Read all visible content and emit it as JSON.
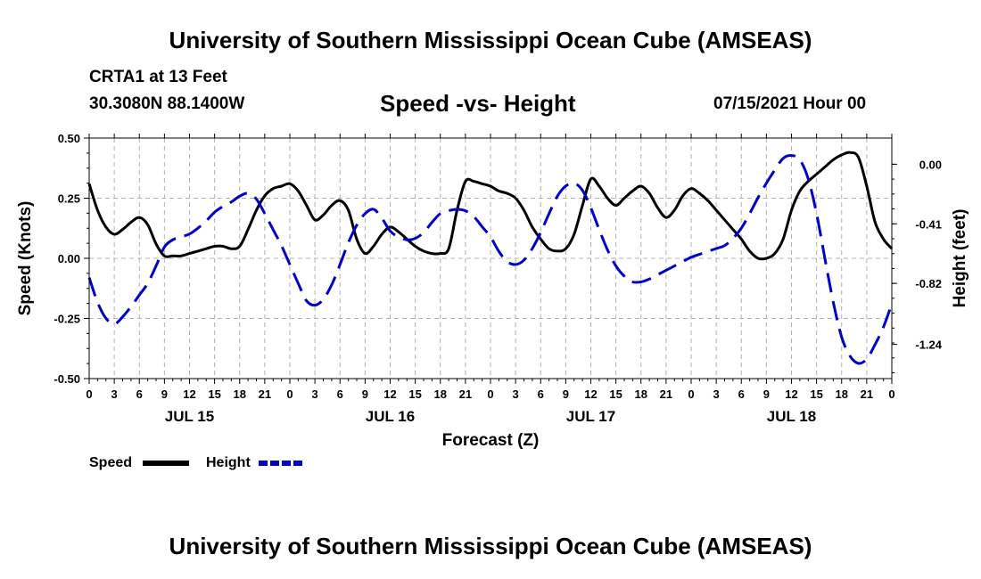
{
  "header": {
    "title": "University of Southern Mississippi Ocean Cube (AMSEAS)",
    "station": "CRTA1 at 13 Feet",
    "coordinates": "30.3080N  88.1400W",
    "chart_title": "Speed -vs- Height",
    "datetime": "07/15/2021 Hour 00"
  },
  "footer": {
    "title": "University of Southern Mississippi Ocean Cube (AMSEAS)"
  },
  "colors": {
    "speed": "#000000",
    "height": "#0000cc",
    "grid": "#b0b0b0"
  },
  "chart_data": {
    "type": "line",
    "title": "Speed -vs- Height",
    "xlabel": "Forecast (Z)",
    "ylabel_left": "Speed (Knots)",
    "ylabel_right": "Height (feet)",
    "xlim": [
      0,
      96
    ],
    "ylim_left": [
      -0.5,
      0.5
    ],
    "ylim_right": [
      -1.475,
      0.18
    ],
    "x_tick_labels": [
      "0",
      "3",
      "6",
      "9",
      "12",
      "15",
      "18",
      "21",
      "0",
      "3",
      "6",
      "9",
      "12",
      "15",
      "18",
      "21",
      "0",
      "3",
      "6",
      "9",
      "12",
      "15",
      "18",
      "21",
      "0",
      "3",
      "6",
      "9",
      "12",
      "15",
      "18",
      "21",
      "0"
    ],
    "day_labels": [
      {
        "label": "JUL 15",
        "x": 12
      },
      {
        "label": "JUL 16",
        "x": 36
      },
      {
        "label": "JUL 17",
        "x": 60
      },
      {
        "label": "JUL 18",
        "x": 84
      }
    ],
    "y_left_ticks": [
      {
        "value": 0.5,
        "label": "0.50"
      },
      {
        "value": 0.25,
        "label": "0.25"
      },
      {
        "value": 0.0,
        "label": "0.00"
      },
      {
        "value": -0.25,
        "label": "-0.25"
      },
      {
        "value": -0.5,
        "label": "-0.50"
      }
    ],
    "y_right_ticks": [
      {
        "value": 0.0,
        "label": "0.00"
      },
      {
        "value": -0.41,
        "label": "-0.41"
      },
      {
        "value": -0.82,
        "label": "-0.82"
      },
      {
        "value": -1.24,
        "label": "-1.24"
      }
    ],
    "legend": [
      {
        "name": "Speed",
        "style": "solid"
      },
      {
        "name": "Height",
        "style": "dashed"
      }
    ],
    "series": [
      {
        "name": "Speed",
        "axis": "left",
        "style": "solid",
        "x": [
          0,
          1,
          2,
          3,
          4,
          5,
          6,
          7,
          8,
          9,
          10,
          11,
          12,
          13,
          14,
          15,
          16,
          17,
          18,
          19,
          20,
          21,
          22,
          23,
          24,
          25,
          26,
          27,
          28,
          29,
          30,
          31,
          32,
          33,
          34,
          35,
          36,
          37,
          38,
          39,
          40,
          41,
          42,
          43,
          44,
          45,
          46,
          47,
          48,
          49,
          50,
          51,
          52,
          53,
          54,
          55,
          56,
          57,
          58,
          59,
          60,
          61,
          62,
          63,
          64,
          65,
          66,
          67,
          68,
          69,
          70,
          71,
          72,
          73,
          74,
          75,
          76,
          77,
          78,
          79,
          80,
          81,
          82,
          83,
          84,
          85,
          86,
          87,
          88,
          89,
          90,
          91,
          92,
          93,
          94,
          95,
          96
        ],
        "values": [
          0.31,
          0.2,
          0.13,
          0.1,
          0.12,
          0.15,
          0.17,
          0.14,
          0.06,
          0.01,
          0.01,
          0.01,
          0.02,
          0.03,
          0.04,
          0.05,
          0.05,
          0.04,
          0.05,
          0.12,
          0.2,
          0.26,
          0.29,
          0.3,
          0.31,
          0.28,
          0.22,
          0.16,
          0.18,
          0.22,
          0.24,
          0.2,
          0.08,
          0.02,
          0.05,
          0.1,
          0.13,
          0.11,
          0.08,
          0.05,
          0.03,
          0.02,
          0.02,
          0.04,
          0.2,
          0.32,
          0.32,
          0.31,
          0.3,
          0.28,
          0.27,
          0.25,
          0.2,
          0.13,
          0.08,
          0.04,
          0.03,
          0.04,
          0.1,
          0.22,
          0.33,
          0.3,
          0.25,
          0.22,
          0.25,
          0.28,
          0.3,
          0.27,
          0.21,
          0.17,
          0.2,
          0.26,
          0.29,
          0.27,
          0.24,
          0.2,
          0.16,
          0.12,
          0.08,
          0.03,
          0.0,
          0.0,
          0.02,
          0.08,
          0.2,
          0.28,
          0.32,
          0.35,
          0.38,
          0.41,
          0.43,
          0.44,
          0.42,
          0.3,
          0.15,
          0.08,
          0.04
        ]
      },
      {
        "name": "Height",
        "axis": "right",
        "style": "dashed",
        "x": [
          0,
          1,
          2,
          3,
          4,
          5,
          6,
          7,
          8,
          9,
          10,
          11,
          12,
          13,
          14,
          15,
          16,
          17,
          18,
          19,
          20,
          21,
          22,
          23,
          24,
          25,
          26,
          27,
          28,
          29,
          30,
          31,
          32,
          33,
          34,
          35,
          36,
          37,
          38,
          39,
          40,
          41,
          42,
          43,
          44,
          45,
          46,
          47,
          48,
          49,
          50,
          51,
          52,
          53,
          54,
          55,
          56,
          57,
          58,
          59,
          60,
          61,
          62,
          63,
          64,
          65,
          66,
          67,
          68,
          69,
          70,
          71,
          72,
          73,
          74,
          75,
          76,
          77,
          78,
          79,
          80,
          81,
          82,
          83,
          84,
          85,
          86,
          87,
          88,
          89,
          90,
          91,
          92,
          93,
          94,
          95,
          96
        ],
        "values": [
          -0.78,
          -0.95,
          -1.06,
          -1.1,
          -1.05,
          -0.98,
          -0.9,
          -0.82,
          -0.7,
          -0.57,
          -0.52,
          -0.5,
          -0.48,
          -0.44,
          -0.39,
          -0.33,
          -0.29,
          -0.26,
          -0.22,
          -0.2,
          -0.24,
          -0.34,
          -0.45,
          -0.56,
          -0.69,
          -0.82,
          -0.94,
          -0.97,
          -0.93,
          -0.83,
          -0.69,
          -0.54,
          -0.42,
          -0.34,
          -0.31,
          -0.37,
          -0.46,
          -0.5,
          -0.52,
          -0.51,
          -0.47,
          -0.4,
          -0.34,
          -0.32,
          -0.31,
          -0.32,
          -0.36,
          -0.43,
          -0.5,
          -0.6,
          -0.67,
          -0.69,
          -0.66,
          -0.58,
          -0.47,
          -0.34,
          -0.22,
          -0.15,
          -0.13,
          -0.18,
          -0.3,
          -0.45,
          -0.59,
          -0.7,
          -0.77,
          -0.81,
          -0.81,
          -0.79,
          -0.76,
          -0.73,
          -0.7,
          -0.67,
          -0.64,
          -0.62,
          -0.6,
          -0.58,
          -0.56,
          -0.51,
          -0.44,
          -0.34,
          -0.23,
          -0.13,
          -0.04,
          0.04,
          0.06,
          0.03,
          -0.1,
          -0.34,
          -0.65,
          -0.95,
          -1.19,
          -1.32,
          -1.37,
          -1.34,
          -1.24,
          -1.12,
          -0.96
        ]
      }
    ]
  }
}
